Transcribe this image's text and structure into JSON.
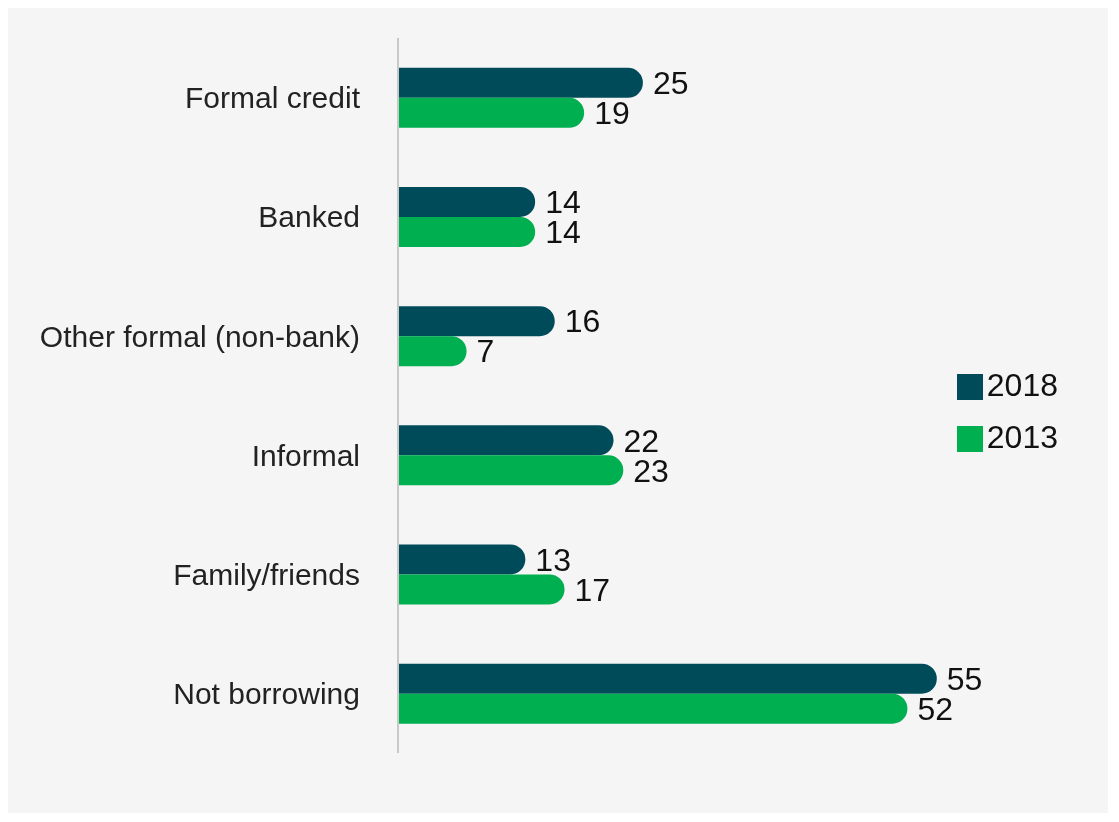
{
  "chart_data": {
    "type": "bar",
    "orientation": "horizontal",
    "categories": [
      "Formal credit",
      "Banked",
      "Other formal (non-bank)",
      "Informal",
      "Family/friends",
      "Not borrowing"
    ],
    "series": [
      {
        "name": "2018",
        "color": "#004b5a",
        "values": [
          25,
          14,
          16,
          22,
          13,
          55
        ]
      },
      {
        "name": "2013",
        "color": "#00b050",
        "values": [
          19,
          14,
          7,
          23,
          17,
          52
        ]
      }
    ],
    "data_labels": true,
    "legend": "right",
    "grid": false
  }
}
